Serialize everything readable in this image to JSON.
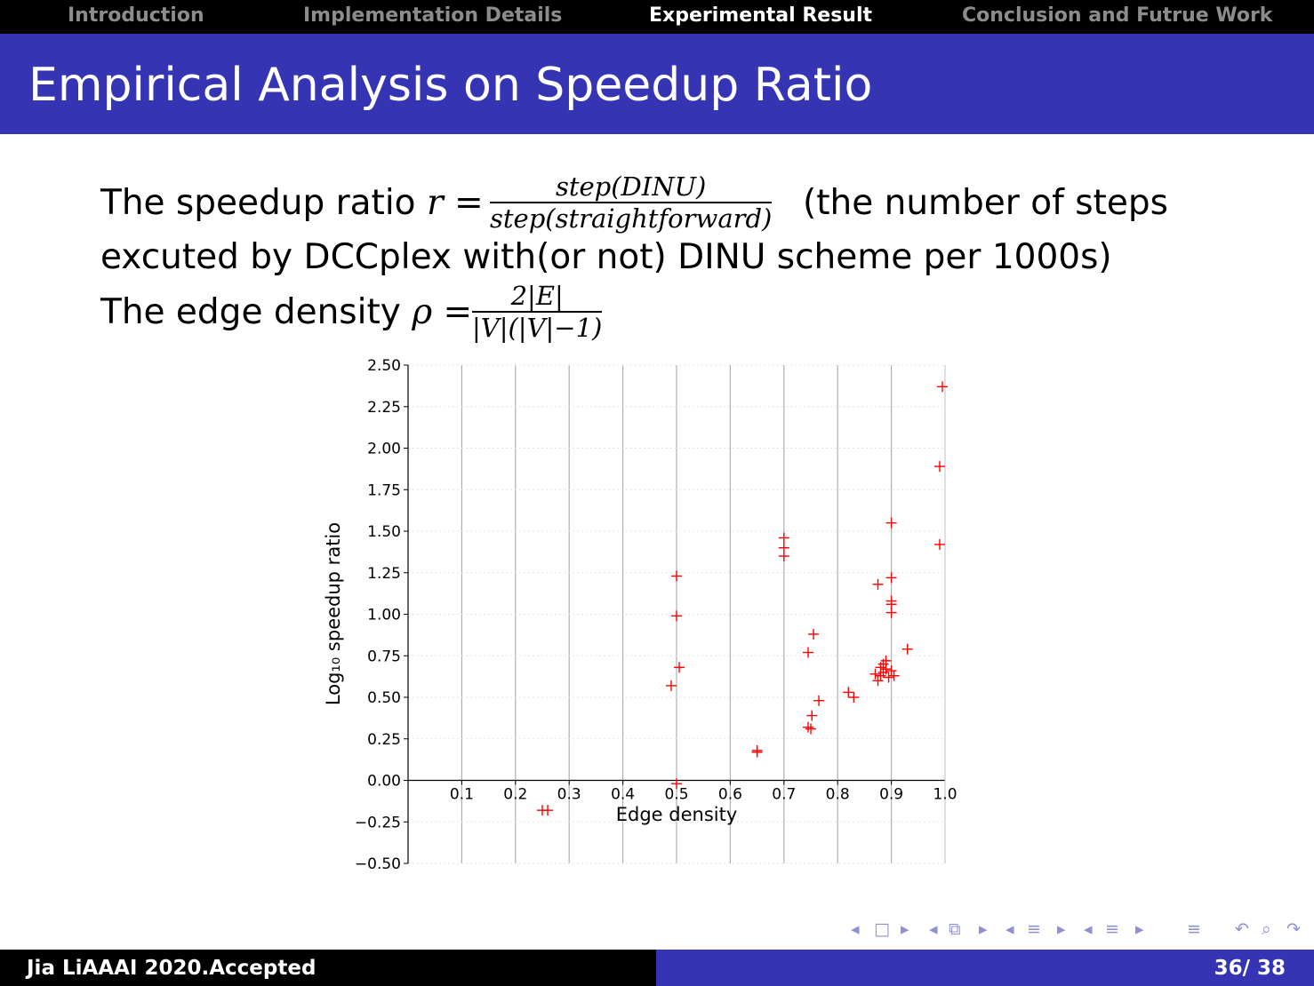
{
  "nav": {
    "items": [
      {
        "label": "Introduction"
      },
      {
        "label": "Implementation Details"
      },
      {
        "label": "Experimental Result"
      },
      {
        "label": "Conclusion and Futrue Work"
      }
    ],
    "active_index": 2
  },
  "slide": {
    "title": "Empirical Analysis on Speedup Ratio",
    "speedup_prefix": "The speedup ratio ",
    "speedup_var": "r =",
    "speedup_num": "step(DINU)",
    "speedup_den": "step(straightforward)",
    "speedup_suffix": "(the number of steps",
    "speedup_line2": "excuted by DCCplex with(or not) DINU scheme per 1000s)",
    "density_prefix": "The edge density ",
    "density_var": "ρ =",
    "density_num": "2|E|",
    "density_den": "|V|(|V|−1)"
  },
  "footer": {
    "author": "Jia LiAAAI 2020.Accepted",
    "page": "36/ 38"
  },
  "colors": {
    "nav_bg": "#000000",
    "title_bg": "#3535b4",
    "marker": "#ff0000",
    "grid": "#b0b0b0"
  },
  "icons": [
    "prev-slide-icon",
    "next-slide-icon",
    "prev-frame-icon",
    "next-frame-icon",
    "prev-subsection-icon",
    "next-subsection-icon",
    "prev-section-icon",
    "next-section-icon",
    "toc-icon",
    "search-icon",
    "back-icon"
  ],
  "chart_data": {
    "type": "scatter",
    "title": "",
    "xlabel": "Edge density",
    "ylabel": "Log₁₀ speedup ratio",
    "xlim": [
      0.0,
      1.0
    ],
    "ylim": [
      -0.5,
      2.5
    ],
    "xticks": [
      "0.1",
      "0.2",
      "0.3",
      "0.4",
      "0.5",
      "0.6",
      "0.7",
      "0.8",
      "0.9",
      "1.0"
    ],
    "yticks": [
      "2.50",
      "2.25",
      "2.00",
      "1.75",
      "1.50",
      "1.25",
      "1.00",
      "0.75",
      "0.50",
      "0.25",
      "0.00",
      "−0.25",
      "−0.50"
    ],
    "grid": "vertical",
    "marker": "+",
    "points": [
      {
        "x": 0.25,
        "y": -0.18
      },
      {
        "x": 0.26,
        "y": -0.18
      },
      {
        "x": 0.5,
        "y": -0.02
      },
      {
        "x": 0.49,
        "y": 0.57
      },
      {
        "x": 0.505,
        "y": 0.68
      },
      {
        "x": 0.5,
        "y": 0.99
      },
      {
        "x": 0.5,
        "y": 1.23
      },
      {
        "x": 0.65,
        "y": 0.18
      },
      {
        "x": 0.65,
        "y": 0.17
      },
      {
        "x": 0.7,
        "y": 1.46
      },
      {
        "x": 0.7,
        "y": 1.4
      },
      {
        "x": 0.7,
        "y": 1.35
      },
      {
        "x": 0.745,
        "y": 0.32
      },
      {
        "x": 0.75,
        "y": 0.31
      },
      {
        "x": 0.752,
        "y": 0.39
      },
      {
        "x": 0.765,
        "y": 0.48
      },
      {
        "x": 0.745,
        "y": 0.77
      },
      {
        "x": 0.755,
        "y": 0.88
      },
      {
        "x": 0.82,
        "y": 0.53
      },
      {
        "x": 0.83,
        "y": 0.5
      },
      {
        "x": 0.875,
        "y": 0.6
      },
      {
        "x": 0.88,
        "y": 0.63
      },
      {
        "x": 0.885,
        "y": 0.65
      },
      {
        "x": 0.89,
        "y": 0.67
      },
      {
        "x": 0.885,
        "y": 0.7
      },
      {
        "x": 0.895,
        "y": 0.62
      },
      {
        "x": 0.9,
        "y": 0.66
      },
      {
        "x": 0.905,
        "y": 0.63
      },
      {
        "x": 0.88,
        "y": 0.68
      },
      {
        "x": 0.89,
        "y": 0.72
      },
      {
        "x": 0.87,
        "y": 0.64
      },
      {
        "x": 0.93,
        "y": 0.79
      },
      {
        "x": 0.9,
        "y": 1.01
      },
      {
        "x": 0.9,
        "y": 1.06
      },
      {
        "x": 0.9,
        "y": 1.08
      },
      {
        "x": 0.875,
        "y": 1.18
      },
      {
        "x": 0.9,
        "y": 1.22
      },
      {
        "x": 0.9,
        "y": 1.55
      },
      {
        "x": 0.99,
        "y": 1.42
      },
      {
        "x": 0.99,
        "y": 1.89
      },
      {
        "x": 0.995,
        "y": 2.37
      }
    ]
  }
}
